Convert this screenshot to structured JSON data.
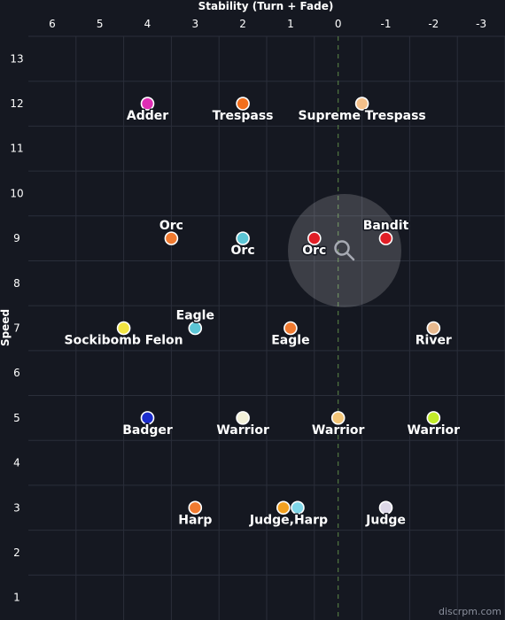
{
  "chart_data": {
    "type": "scatter",
    "xlabel": "Stability (Turn + Fade)",
    "ylabel": "Speed",
    "xlim": [
      6.5,
      -3.5
    ],
    "ylim": [
      0.5,
      13.5
    ],
    "x_ticks": [
      "6",
      "5",
      "4",
      "3",
      "2",
      "1",
      "0",
      "-1",
      "-2",
      "-3"
    ],
    "y_ticks": [
      "13",
      "12",
      "11",
      "10",
      "9",
      "8",
      "7",
      "6",
      "5",
      "4",
      "3",
      "2",
      "1"
    ],
    "grid": true,
    "zero_line": true,
    "points": [
      {
        "x": 4,
        "y": 12,
        "label": "Adder",
        "color": "#e02fb5"
      },
      {
        "x": 2,
        "y": 12,
        "label": "Trespass",
        "color": "#f26f1d"
      },
      {
        "x": -0.5,
        "y": 12,
        "label": "Supreme Trespass",
        "color": "#f4c08a"
      },
      {
        "x": 3.5,
        "y": 9,
        "label": "Orc",
        "color": "#f07a30"
      },
      {
        "x": 2,
        "y": 9,
        "label": "Orc",
        "color": "#5cc6d6"
      },
      {
        "x": 0.5,
        "y": 9,
        "label": "Orc",
        "color": "#e11e26"
      },
      {
        "x": -1,
        "y": 9,
        "label": "Bandit",
        "color": "#e11e26"
      },
      {
        "x": 4.5,
        "y": 7,
        "label": "Sockibomb Felon",
        "color": "#f1e442"
      },
      {
        "x": 3,
        "y": 7,
        "label": "Eagle",
        "color": "#5cc6d6"
      },
      {
        "x": 1,
        "y": 7,
        "label": "Eagle",
        "color": "#f07a30"
      },
      {
        "x": -2,
        "y": 7,
        "label": "River",
        "color": "#e8b98e"
      },
      {
        "x": 4,
        "y": 5,
        "label": "Badger",
        "color": "#1b2ccc"
      },
      {
        "x": 2,
        "y": 5,
        "label": "Warrior",
        "color": "#f2f0d8"
      },
      {
        "x": 0,
        "y": 5,
        "label": "Warrior",
        "color": "#f4c678"
      },
      {
        "x": -2,
        "y": 5,
        "label": "Warrior",
        "color": "#c2ec2a"
      },
      {
        "x": 3,
        "y": 3,
        "label": "Harp",
        "color": "#f07a30"
      },
      {
        "x": 1.15,
        "y": 3,
        "label": "",
        "color": "#f2a020"
      },
      {
        "x": 0.85,
        "y": 3,
        "label": "Judge,Harp",
        "color": "#7fd6e8"
      },
      {
        "x": -1,
        "y": 3,
        "label": "Judge",
        "color": "#ddd8e8"
      }
    ]
  },
  "watermark": "discrpm.com",
  "search_icon": "magnifier-icon"
}
